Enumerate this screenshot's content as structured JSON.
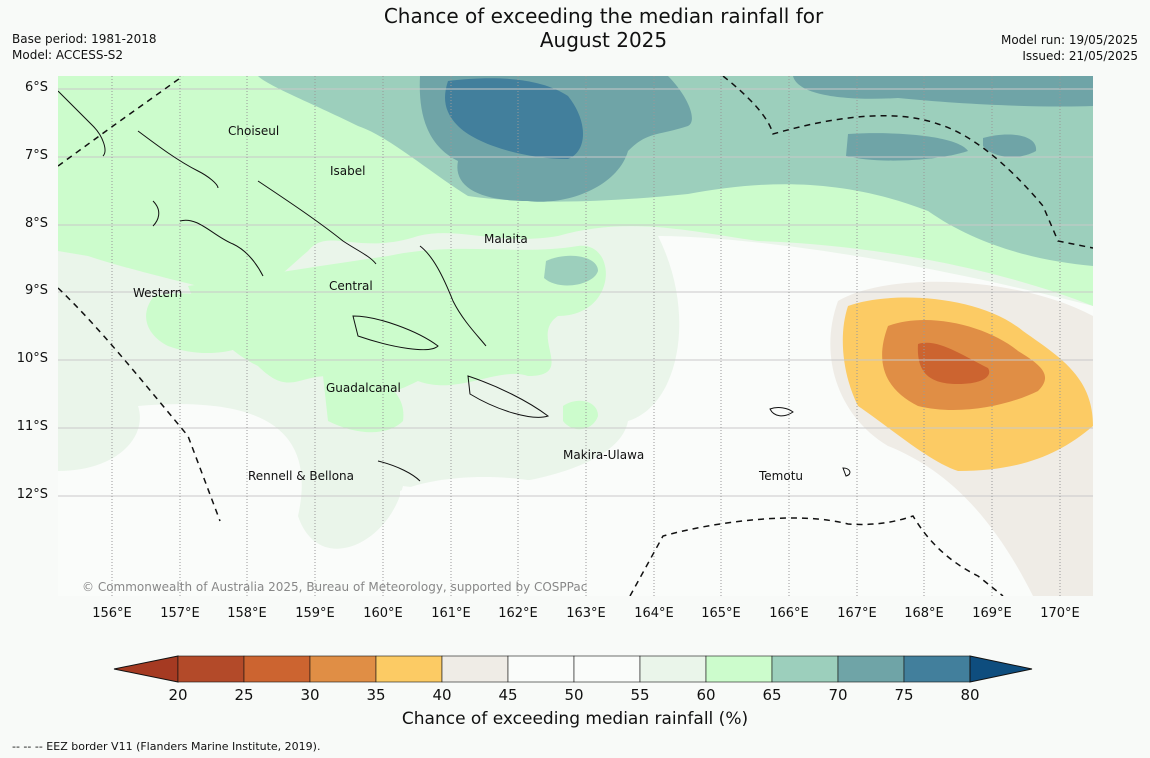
{
  "title": {
    "line1": "Chance of exceeding the median rainfall for",
    "line2": "August 2025"
  },
  "meta_left": {
    "base_period": "Base period: 1981-2018",
    "model": "Model: ACCESS-S2"
  },
  "meta_right": {
    "model_run": "Model run: 19/05/2025",
    "issued": "Issued: 21/05/2025"
  },
  "map": {
    "lat_labels": [
      "6°S",
      "7°S",
      "8°S",
      "9°S",
      "10°S",
      "11°S",
      "12°S"
    ],
    "lon_labels": [
      "156°E",
      "157°E",
      "158°E",
      "159°E",
      "160°E",
      "161°E",
      "162°E",
      "163°E",
      "164°E",
      "165°E",
      "166°E",
      "167°E",
      "168°E",
      "169°E",
      "170°E"
    ],
    "places": [
      "Choiseul",
      "Isabel",
      "Malaita",
      "Central",
      "Western",
      "Guadalcanal",
      "Makira-Ulawa",
      "Rennell & Bellona",
      "Temotu"
    ],
    "copyright": "© Commonwealth of Australia 2025, Bureau of Meteorology, supported by COSPPac"
  },
  "colorbar": {
    "label": "Chance of exceeding median rainfall (%)",
    "ticks": [
      "20",
      "25",
      "30",
      "35",
      "40",
      "45",
      "50",
      "55",
      "60",
      "65",
      "70",
      "75",
      "80"
    ],
    "colors": [
      "#a53a22",
      "#b34a29",
      "#cc6430",
      "#e08e45",
      "#fccb64",
      "#efece6",
      "#fafcfa",
      "#fafcfa",
      "#eaf5ea",
      "#ccfccc",
      "#9ccfbc",
      "#6fa4a7",
      "#427f9c",
      "#0e4d7e"
    ]
  },
  "footnote": "--  --  -- EEZ border V11 (Flanders Marine Institute, 2019)."
}
